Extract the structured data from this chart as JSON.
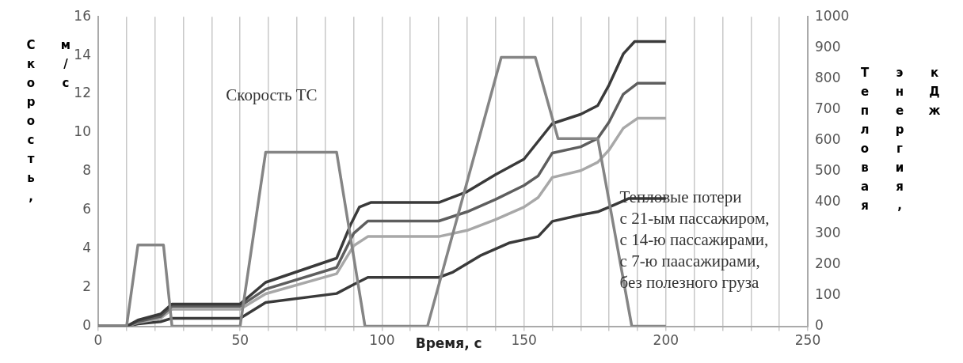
{
  "chart_data": {
    "type": "line",
    "xlabel": "Время, с",
    "ylabel": "Скорость, м/с",
    "y2label": "Тепловая энергия, кДж",
    "xlim": [
      0,
      250
    ],
    "xticks": [
      0,
      {
        "value": 10,
        "label": null
      },
      {
        "value": 20,
        "label": null
      },
      {
        "value": 30,
        "label": null
      },
      {
        "value": 40,
        "label": null
      },
      50,
      {
        "value": 60,
        "label": null
      },
      {
        "value": 70,
        "label": null
      },
      {
        "value": 80,
        "label": null
      },
      {
        "value": 90,
        "label": null
      },
      100,
      {
        "value": 110,
        "label": null
      },
      {
        "value": 120,
        "label": null
      },
      {
        "value": 130,
        "label": null
      },
      {
        "value": 140,
        "label": null
      },
      150,
      {
        "value": 160,
        "label": null
      },
      {
        "value": 170,
        "label": null
      },
      {
        "value": 180,
        "label": null
      },
      {
        "value": 190,
        "label": null
      },
      200,
      {
        "value": 210,
        "label": null
      },
      {
        "value": 220,
        "label": null
      },
      {
        "value": 230,
        "label": null
      },
      {
        "value": 240,
        "label": null
      },
      250
    ],
    "ylim": [
      0,
      16
    ],
    "yticks": [
      0,
      2,
      4,
      6,
      8,
      10,
      12,
      14,
      16
    ],
    "y2lim": [
      0,
      1000
    ],
    "y2ticks": [
      0,
      100,
      200,
      300,
      400,
      500,
      600,
      700,
      800,
      900,
      1000
    ],
    "grid": "x",
    "marker": "none",
    "line_style": "solid",
    "series": [
      {
        "color": "#858585",
        "x": [
          0,
          10,
          14,
          23,
          26,
          50,
          59,
          84,
          94,
          116,
          142,
          154,
          162,
          176,
          188,
          200
        ],
        "values": [
          0,
          0,
          4.2,
          4.2,
          0,
          0,
          9.0,
          9.0,
          0,
          0,
          13.9,
          13.9,
          9.7,
          9.7,
          0,
          0
        ]
      },
      {
        "color": "#3a3a3a",
        "axis": "y2",
        "x": [
          0,
          10,
          14,
          22,
          26,
          50,
          59,
          84,
          89,
          92,
          96,
          120,
          130,
          140,
          150,
          160,
          170,
          176,
          180,
          185,
          189,
          200
        ],
        "values": [
          0,
          0,
          20,
          40,
          72,
          72,
          142,
          220,
          330,
          385,
          400,
          400,
          435,
          490,
          540,
          655,
          685,
          713,
          780,
          880,
          920,
          920
        ]
      },
      {
        "color": "#5e5e5e",
        "axis": "y2",
        "x": [
          0,
          10,
          14,
          22,
          26,
          50,
          59,
          84,
          90,
          95,
          120,
          130,
          140,
          150,
          155,
          160,
          170,
          176,
          180,
          185,
          190,
          200
        ],
        "values": [
          0,
          0,
          15,
          32,
          65,
          65,
          120,
          190,
          300,
          340,
          340,
          370,
          410,
          455,
          486,
          560,
          580,
          607,
          660,
          750,
          785,
          785
        ]
      },
      {
        "color": "#a8a8a8",
        "axis": "y2",
        "x": [
          0,
          10,
          14,
          22,
          26,
          50,
          59,
          84,
          90,
          95,
          120,
          130,
          140,
          150,
          155,
          160,
          170,
          176,
          180,
          185,
          190,
          200
        ],
        "values": [
          0,
          0,
          12,
          26,
          55,
          55,
          105,
          170,
          260,
          290,
          290,
          310,
          345,
          385,
          416,
          481,
          503,
          530,
          570,
          640,
          672,
          672
        ]
      },
      {
        "color": "#3a3a3a",
        "axis": "y2",
        "x": [
          0,
          10,
          14,
          22,
          26,
          50,
          59,
          84,
          90,
          95,
          120,
          125,
          135,
          145,
          155,
          160,
          170,
          176,
          180,
          187,
          200
        ],
        "values": [
          0,
          0,
          8,
          15,
          26,
          26,
          77,
          106,
          135,
          158,
          158,
          175,
          230,
          270,
          290,
          339,
          360,
          370,
          385,
          413,
          413
        ]
      }
    ],
    "annotations": [
      "Скорость ТС",
      "Тепловые потери",
      "с 21-ым пассажиром,",
      "с 14-ю пассажирами,",
      "с 7-ю паасажирами,",
      "без полезного груза"
    ]
  }
}
